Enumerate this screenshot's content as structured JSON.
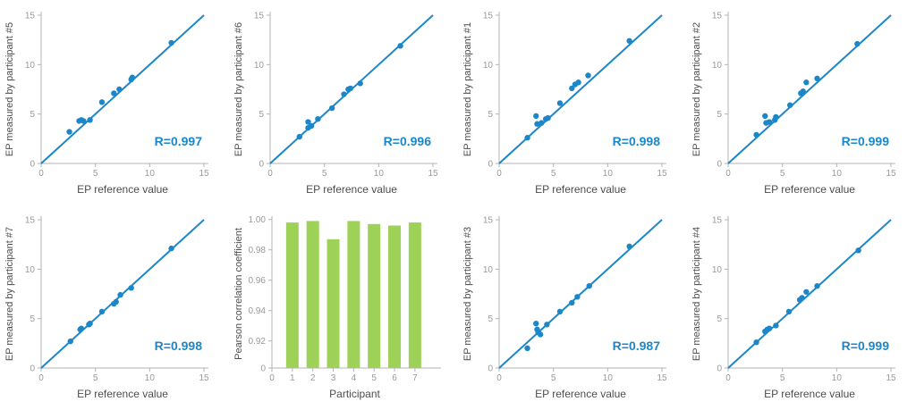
{
  "palette": {
    "accent_blue": "#1c87c8",
    "bar_green": "#9ed157",
    "axis_gray": "#b3b3b3",
    "tick_label_gray": "#9a9a9a",
    "axis_label_gray": "#4d4d4d"
  },
  "chart_data": [
    {
      "type": "scatter",
      "ylabel": "EP measured by participant #5",
      "xlabel": "EP reference value",
      "annotation": "R=0.997",
      "xlim": [
        0,
        15
      ],
      "ylim": [
        0,
        15
      ],
      "x_ticks": [
        0,
        5,
        10,
        15
      ],
      "y_ticks": [
        0,
        5,
        10,
        15
      ],
      "identity_line": true,
      "points": [
        [
          2.6,
          3.2
        ],
        [
          3.5,
          4.3
        ],
        [
          3.7,
          4.4
        ],
        [
          3.9,
          4.3
        ],
        [
          4.5,
          4.4
        ],
        [
          5.6,
          6.2
        ],
        [
          6.7,
          7.1
        ],
        [
          7.2,
          7.5
        ],
        [
          8.3,
          8.5
        ],
        [
          8.4,
          8.7
        ],
        [
          12,
          12.2
        ]
      ]
    },
    {
      "type": "scatter",
      "ylabel": "EP measured by participant #6",
      "xlabel": "EP reference value",
      "annotation": "R=0.996",
      "xlim": [
        0,
        15
      ],
      "ylim": [
        0,
        15
      ],
      "x_ticks": [
        0,
        5,
        10,
        15
      ],
      "y_ticks": [
        0,
        5,
        10,
        15
      ],
      "identity_line": true,
      "points": [
        [
          2.7,
          2.7
        ],
        [
          3.5,
          4.2
        ],
        [
          3.5,
          3.6
        ],
        [
          3.8,
          3.8
        ],
        [
          4.4,
          4.5
        ],
        [
          5.7,
          5.6
        ],
        [
          6.8,
          7.0
        ],
        [
          7.2,
          7.5
        ],
        [
          7.4,
          7.6
        ],
        [
          8.3,
          8.1
        ],
        [
          12,
          11.9
        ]
      ]
    },
    {
      "type": "scatter",
      "ylabel": "EP measured by participant #1",
      "xlabel": "EP reference value",
      "annotation": "R=0.998",
      "xlim": [
        0,
        15
      ],
      "ylim": [
        0,
        15
      ],
      "x_ticks": [
        0,
        5,
        10,
        15
      ],
      "y_ticks": [
        0,
        5,
        10,
        15
      ],
      "identity_line": true,
      "points": [
        [
          2.6,
          2.6
        ],
        [
          3.4,
          4.8
        ],
        [
          3.5,
          4.0
        ],
        [
          3.9,
          4.1
        ],
        [
          4.3,
          4.5
        ],
        [
          4.5,
          4.6
        ],
        [
          5.6,
          6.1
        ],
        [
          6.7,
          7.6
        ],
        [
          7.0,
          8.0
        ],
        [
          7.3,
          8.2
        ],
        [
          8.2,
          8.9
        ],
        [
          12,
          12.4
        ]
      ]
    },
    {
      "type": "scatter",
      "ylabel": "EP measured by participant #2",
      "xlabel": "EP reference value",
      "annotation": "R=0.999",
      "xlim": [
        0,
        15
      ],
      "ylim": [
        0,
        15
      ],
      "x_ticks": [
        0,
        5,
        10,
        15
      ],
      "y_ticks": [
        0,
        5,
        10,
        15
      ],
      "identity_line": true,
      "points": [
        [
          2.6,
          2.9
        ],
        [
          3.4,
          4.8
        ],
        [
          3.5,
          4.1
        ],
        [
          3.8,
          4.2
        ],
        [
          4.3,
          4.4
        ],
        [
          4.4,
          4.7
        ],
        [
          5.7,
          5.9
        ],
        [
          6.7,
          7.1
        ],
        [
          6.9,
          7.3
        ],
        [
          7.2,
          8.2
        ],
        [
          8.2,
          8.6
        ],
        [
          11.9,
          12.1
        ]
      ]
    },
    {
      "type": "scatter",
      "ylabel": "EP measured by participant #7",
      "xlabel": "EP reference value",
      "annotation": "R=0.998",
      "xlim": [
        0,
        15
      ],
      "ylim": [
        0,
        15
      ],
      "x_ticks": [
        0,
        5,
        10,
        15
      ],
      "y_ticks": [
        0,
        5,
        10,
        15
      ],
      "identity_line": true,
      "points": [
        [
          2.7,
          2.7
        ],
        [
          3.6,
          3.9
        ],
        [
          3.7,
          4.0
        ],
        [
          4.4,
          4.4
        ],
        [
          4.5,
          4.5
        ],
        [
          5.6,
          5.7
        ],
        [
          6.7,
          6.5
        ],
        [
          6.9,
          6.7
        ],
        [
          7.3,
          7.4
        ],
        [
          8.3,
          8.1
        ],
        [
          12,
          12.1
        ]
      ]
    },
    {
      "type": "bar",
      "ylabel": "Pearson correlation coefficient",
      "xlabel": "Participant",
      "categories": [
        "1",
        "2",
        "3",
        "4",
        "5",
        "6",
        "7"
      ],
      "values": [
        0.998,
        0.999,
        0.987,
        0.999,
        0.997,
        0.996,
        0.998
      ],
      "x_tick_labels": [
        "0",
        "1",
        "2",
        "3",
        "4",
        "5",
        "6",
        "7"
      ],
      "y_ticks": [
        0,
        0.92,
        0.94,
        0.96,
        0.98,
        1.0
      ],
      "y_tick_labels": [
        "0",
        "0.92",
        "0.94",
        "0.96",
        "0.98",
        "1.00"
      ],
      "axis_note": "y axis compressed between 0 and 0.92",
      "grid": false,
      "legend": "none"
    },
    {
      "type": "scatter",
      "ylabel": "EP measured by participant #3",
      "xlabel": "EP reference value",
      "annotation": "R=0.987",
      "xlim": [
        0,
        15
      ],
      "ylim": [
        0,
        15
      ],
      "x_ticks": [
        0,
        5,
        10,
        15
      ],
      "y_ticks": [
        0,
        5,
        10,
        15
      ],
      "identity_line": true,
      "points": [
        [
          2.6,
          2.0
        ],
        [
          3.4,
          4.5
        ],
        [
          3.5,
          3.9
        ],
        [
          3.6,
          3.6
        ],
        [
          3.8,
          3.4
        ],
        [
          4.4,
          4.4
        ],
        [
          5.6,
          5.7
        ],
        [
          6.7,
          6.6
        ],
        [
          7.2,
          7.2
        ],
        [
          8.3,
          8.3
        ],
        [
          12,
          12.3
        ]
      ]
    },
    {
      "type": "scatter",
      "ylabel": "EP measured by participant #4",
      "xlabel": "EP reference value",
      "annotation": "R=0.999",
      "xlim": [
        0,
        15
      ],
      "ylim": [
        0,
        15
      ],
      "x_ticks": [
        0,
        5,
        10,
        15
      ],
      "y_ticks": [
        0,
        5,
        10,
        15
      ],
      "identity_line": true,
      "points": [
        [
          2.6,
          2.6
        ],
        [
          3.4,
          3.7
        ],
        [
          3.6,
          3.9
        ],
        [
          3.8,
          4.0
        ],
        [
          4.4,
          4.3
        ],
        [
          5.6,
          5.7
        ],
        [
          6.6,
          6.9
        ],
        [
          6.8,
          7.1
        ],
        [
          7.2,
          7.7
        ],
        [
          8.2,
          8.3
        ],
        [
          12,
          11.9
        ]
      ]
    }
  ]
}
